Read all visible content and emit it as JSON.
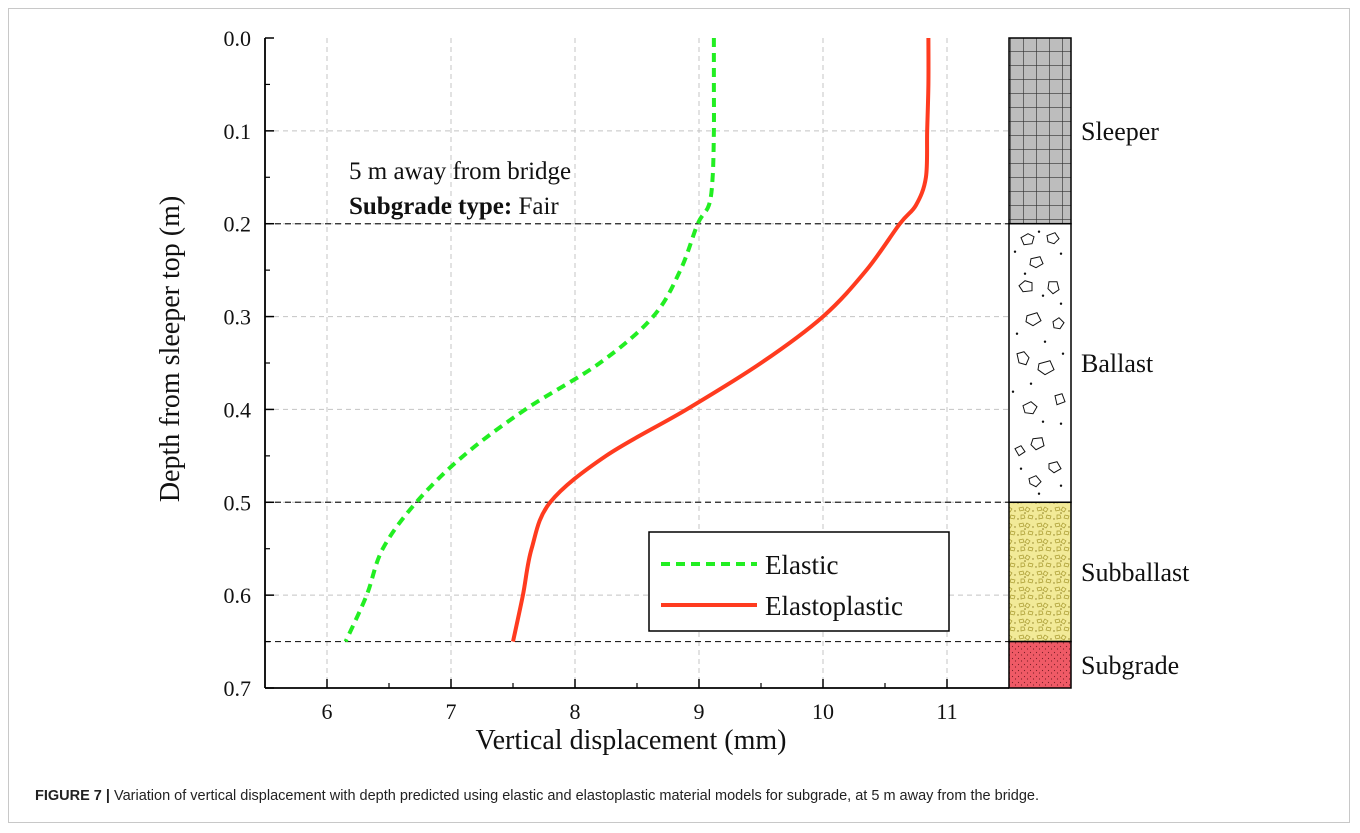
{
  "chart_data": {
    "type": "line",
    "xlabel": "Vertical displacement (mm)",
    "ylabel": "Depth from sleeper top (m)",
    "xlim": [
      5.5,
      11.5
    ],
    "ylim": [
      0.0,
      0.7
    ],
    "y_inverted": true,
    "grid": true,
    "x_ticks": [
      "6",
      "7",
      "8",
      "9",
      "10",
      "11"
    ],
    "y_ticks": [
      "0.0",
      "0.1",
      "0.2",
      "0.3",
      "0.4",
      "0.5",
      "0.6",
      "0.7"
    ],
    "series": [
      {
        "name": "Elastic",
        "color": "#22ee22",
        "style": "dashed",
        "points": [
          [
            9.12,
            0.0
          ],
          [
            9.12,
            0.05
          ],
          [
            9.12,
            0.1
          ],
          [
            9.11,
            0.15
          ],
          [
            9.08,
            0.18
          ],
          [
            8.99,
            0.2
          ],
          [
            8.85,
            0.25
          ],
          [
            8.63,
            0.3
          ],
          [
            8.2,
            0.35
          ],
          [
            7.6,
            0.4
          ],
          [
            7.1,
            0.45
          ],
          [
            6.72,
            0.5
          ],
          [
            6.45,
            0.55
          ],
          [
            6.32,
            0.6
          ],
          [
            6.15,
            0.65
          ]
        ]
      },
      {
        "name": "Elastoplastic",
        "color": "#ff3b1f",
        "style": "solid",
        "points": [
          [
            10.85,
            0.0
          ],
          [
            10.85,
            0.05
          ],
          [
            10.84,
            0.1
          ],
          [
            10.83,
            0.15
          ],
          [
            10.75,
            0.18
          ],
          [
            10.62,
            0.2
          ],
          [
            10.35,
            0.25
          ],
          [
            10.0,
            0.3
          ],
          [
            9.5,
            0.35
          ],
          [
            8.9,
            0.4
          ],
          [
            8.25,
            0.45
          ],
          [
            7.8,
            0.5
          ],
          [
            7.65,
            0.55
          ],
          [
            7.58,
            0.6
          ],
          [
            7.5,
            0.65
          ]
        ]
      }
    ],
    "boundaries": [
      0.2,
      0.5,
      0.65
    ],
    "layers": [
      {
        "name": "Sleeper",
        "from": 0.0,
        "to": 0.2,
        "color": "#bdbdbd",
        "pattern": "grid"
      },
      {
        "name": "Ballast",
        "from": 0.2,
        "to": 0.5,
        "color": "#ffffff",
        "pattern": "stones"
      },
      {
        "name": "Subballast",
        "from": 0.5,
        "to": 0.65,
        "color": "#f2ea98",
        "pattern": "gravel"
      },
      {
        "name": "Subgrade",
        "from": 0.65,
        "to": 0.7,
        "color": "#ef5a66",
        "pattern": "dots"
      }
    ],
    "annotation": {
      "line1": "5 m away from bridge",
      "line2_bold": "Subgrade type:",
      "line2_value": " Fair"
    },
    "legend_position": "lower-right"
  },
  "caption": {
    "label": "FIGURE 7 |",
    "text": " Variation of vertical displacement with depth predicted using elastic and elastoplastic material models for subgrade, at 5 m away from the bridge."
  }
}
